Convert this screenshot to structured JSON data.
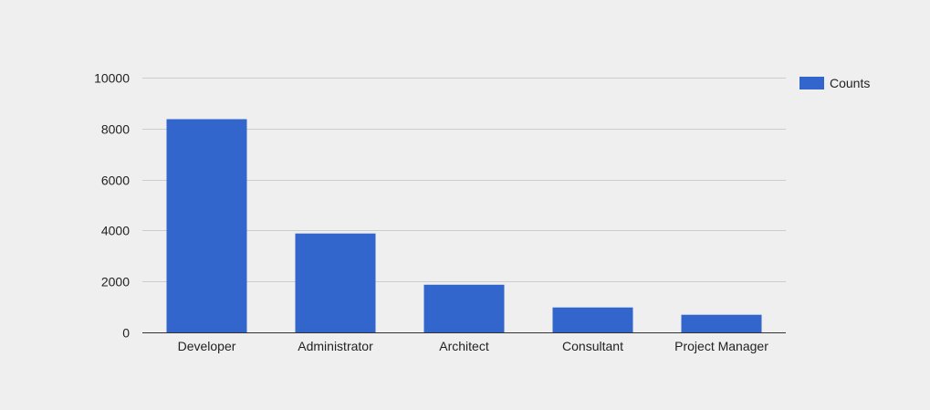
{
  "chart_data": {
    "type": "bar",
    "categories": [
      "Developer",
      "Administrator",
      "Architect",
      "Consultant",
      "Project Manager"
    ],
    "series": [
      {
        "name": "Counts",
        "values": [
          8370,
          3880,
          1870,
          980,
          690
        ],
        "color": "#3366cc"
      }
    ],
    "ylim": [
      0,
      10000
    ],
    "yticks": [
      0,
      2000,
      4000,
      6000,
      8000,
      10000
    ],
    "grid": true,
    "legend_position": "top-right",
    "title": "",
    "xlabel": "",
    "ylabel": ""
  },
  "colors": {
    "background": "#efefef",
    "gridline": "#cccccc",
    "baseline": "#333333",
    "text": "#222222"
  }
}
